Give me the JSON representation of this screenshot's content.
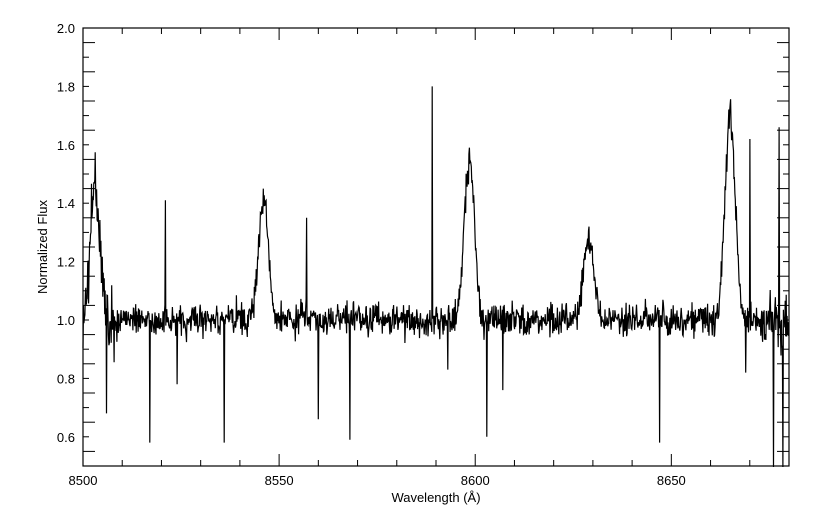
{
  "chart_data": {
    "type": "line",
    "title": "",
    "xlabel": "Wavelength (Å)",
    "ylabel": "Normalized Flux",
    "xlim": [
      8500,
      8680
    ],
    "ylim": [
      0.5,
      2.0
    ],
    "x_major_ticks": [
      8500,
      8550,
      8600,
      8650
    ],
    "x_tick_labels": [
      "8500",
      "8550",
      "8600",
      "8650"
    ],
    "y_major_ticks": [
      0.6,
      0.8,
      1.0,
      1.2,
      1.4,
      1.6,
      1.8,
      2.0
    ],
    "y_tick_labels": [
      "0.6",
      "0.8",
      "1.0",
      "1.2",
      "1.4",
      "1.6",
      "1.8",
      "2.0"
    ],
    "grid": false,
    "line_color": "#000000",
    "continuum": 1.0,
    "emission_features": [
      {
        "center": 8503.0,
        "peak": 1.48
      },
      {
        "center": 8546.0,
        "peak": 1.45
      },
      {
        "center": 8598.5,
        "peak": 1.59
      },
      {
        "center": 8629.0,
        "peak": 1.32
      },
      {
        "center": 8665.0,
        "peak": 1.74
      }
    ],
    "narrow_spikes": [
      {
        "x": 8521.0,
        "y": 1.41
      },
      {
        "x": 8557.0,
        "y": 1.35
      },
      {
        "x": 8589.0,
        "y": 1.8
      },
      {
        "x": 8670.0,
        "y": 1.62
      },
      {
        "x": 8677.5,
        "y": 1.66
      }
    ],
    "absorption_dips": [
      {
        "x": 8506.0,
        "y": 0.68
      },
      {
        "x": 8517.0,
        "y": 0.58
      },
      {
        "x": 8524.0,
        "y": 0.78
      },
      {
        "x": 8536.0,
        "y": 0.58
      },
      {
        "x": 8560.0,
        "y": 0.66
      },
      {
        "x": 8568.0,
        "y": 0.59
      },
      {
        "x": 8593.0,
        "y": 0.83
      },
      {
        "x": 8603.0,
        "y": 0.6
      },
      {
        "x": 8607.0,
        "y": 0.76
      },
      {
        "x": 8647.0,
        "y": 0.58
      },
      {
        "x": 8669.0,
        "y": 0.82
      },
      {
        "x": 8676.0,
        "y": 0.45
      },
      {
        "x": 8678.5,
        "y": 0.45
      }
    ]
  }
}
